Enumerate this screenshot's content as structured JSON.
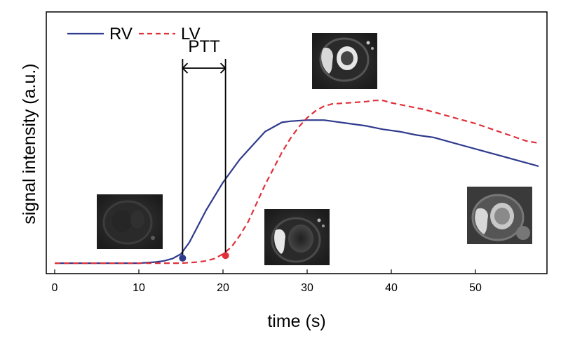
{
  "chart_data": {
    "type": "line",
    "title": "",
    "xlabel": "time (s)",
    "ylabel": "signal intensity (a.u.)",
    "xlim": [
      -0.5,
      58.5
    ],
    "ylim": [
      0,
      1.0
    ],
    "xticks": [
      0,
      10,
      20,
      30,
      40,
      50
    ],
    "xtick_labels": [
      "0",
      "10",
      "20",
      "30",
      "40",
      "50"
    ],
    "grid": false,
    "legend_position": "top-left",
    "series": [
      {
        "name": "RV",
        "color": "#2e3a8c",
        "dash": "solid",
        "x": [
          0,
          5,
          10,
          12,
          13,
          14,
          15,
          16,
          17,
          18,
          19,
          20,
          21,
          22,
          23,
          24,
          25,
          26,
          27,
          28,
          30,
          32,
          33,
          35,
          37,
          39,
          41,
          43,
          45,
          47,
          49,
          51,
          53,
          55,
          57.5
        ],
        "values": [
          0.03,
          0.03,
          0.03,
          0.035,
          0.04,
          0.05,
          0.07,
          0.12,
          0.19,
          0.26,
          0.32,
          0.38,
          0.43,
          0.48,
          0.52,
          0.56,
          0.6,
          0.62,
          0.64,
          0.645,
          0.65,
          0.65,
          0.645,
          0.635,
          0.625,
          0.61,
          0.6,
          0.585,
          0.575,
          0.555,
          0.535,
          0.515,
          0.495,
          0.475,
          0.45
        ]
      },
      {
        "name": "LV",
        "color": "#e0303a",
        "dash": "dashed",
        "x": [
          0,
          5,
          10,
          15,
          17,
          18,
          19,
          20,
          21,
          22,
          23,
          24,
          25,
          26,
          27,
          28,
          29,
          30,
          31,
          32,
          33,
          35,
          37,
          38,
          39,
          40,
          42,
          44,
          46,
          48,
          50,
          52,
          54,
          56,
          57.5
        ],
        "values": [
          0.03,
          0.03,
          0.03,
          0.03,
          0.035,
          0.04,
          0.05,
          0.07,
          0.1,
          0.15,
          0.21,
          0.29,
          0.37,
          0.44,
          0.51,
          0.57,
          0.62,
          0.66,
          0.69,
          0.71,
          0.72,
          0.725,
          0.73,
          0.735,
          0.735,
          0.725,
          0.71,
          0.695,
          0.675,
          0.655,
          0.635,
          0.61,
          0.585,
          0.56,
          0.55
        ]
      }
    ],
    "annotations": {
      "ptt": {
        "label": "PTT",
        "rv_onset": {
          "x": 15.2,
          "y": 0.052,
          "color": "#2e3a8c"
        },
        "lv_onset": {
          "x": 20.3,
          "y": 0.063,
          "color": "#e0303a"
        },
        "arrow_y": 0.875,
        "bar_top_y": 0.915
      }
    },
    "insets": [
      {
        "name": "mri-inset-baseline",
        "description": "cardiac MRI short-axis slice, pre-contrast"
      },
      {
        "name": "mri-inset-rv",
        "description": "cardiac MRI short-axis slice, RV enhancement"
      },
      {
        "name": "mri-inset-peak",
        "description": "cardiac MRI short-axis slice, peak LV enhancement"
      },
      {
        "name": "mri-inset-late",
        "description": "cardiac MRI short-axis slice, late phase"
      }
    ]
  }
}
